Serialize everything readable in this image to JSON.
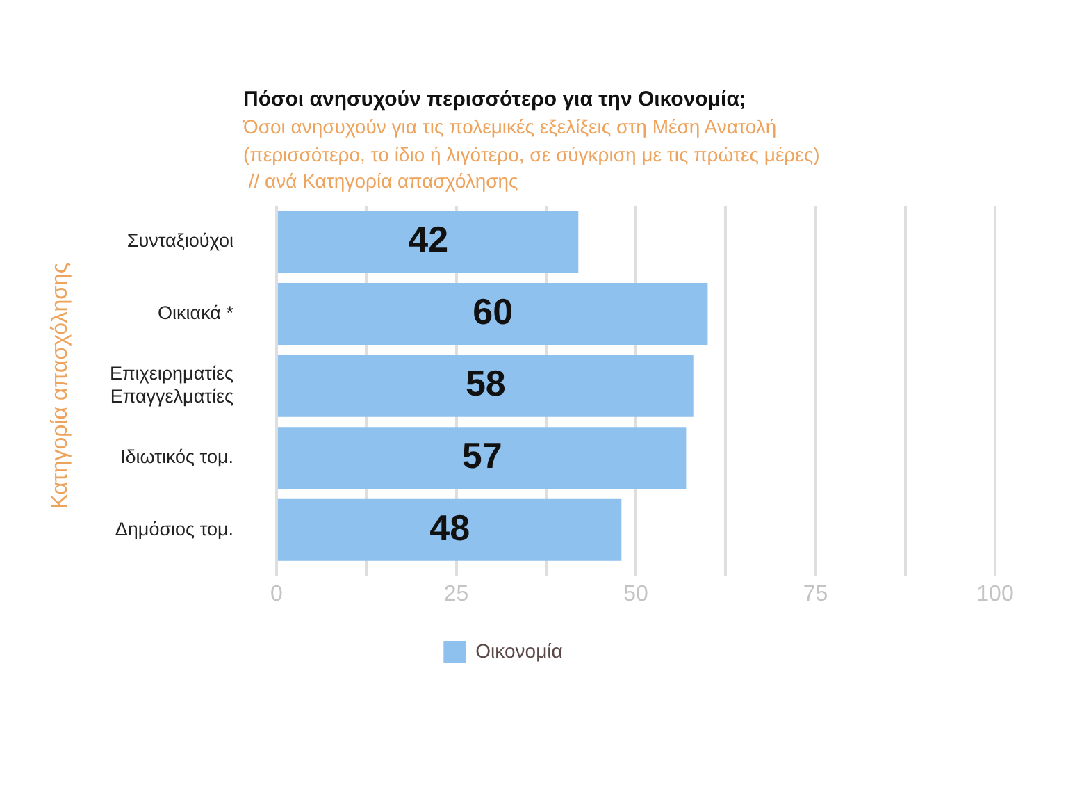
{
  "chart_data": {
    "type": "bar",
    "orientation": "horizontal",
    "title": "Πόσοι ανησυχούν περισσότερο για την Οικονομία;",
    "subtitle": "Όσοι ανησυχούν για τις πολεμικές εξελίξεις στη Μέση Ανατολή\n(περισσότερο, το ίδιο ή λιγότερο, σε σύγκριση με τις πρώτες μέρες)\n // ανά Κατηγορία απασχόλησης",
    "ylabel": "Κατηγορία απασχόλησης",
    "categories": [
      "Συνταξιούχοι",
      "Οικιακά *",
      "Επιχειρηματίες\nΕπαγγελματίες",
      "Ιδιωτικός τομ.",
      "Δημόσιος τομ."
    ],
    "series": [
      {
        "name": "Οικονομία",
        "color": "#8fc1ee",
        "values": [
          42,
          60,
          58,
          57,
          48
        ]
      }
    ],
    "xlim": [
      0,
      100
    ],
    "xticks": [
      0,
      {
        "value": 12.5,
        "label": null
      },
      25,
      {
        "value": 37.5,
        "label": null
      },
      50,
      {
        "value": 62.5,
        "label": null
      },
      75,
      {
        "value": 87.5,
        "label": null
      },
      100
    ],
    "grid": "x",
    "legend": "bottom",
    "data_labels": true
  }
}
